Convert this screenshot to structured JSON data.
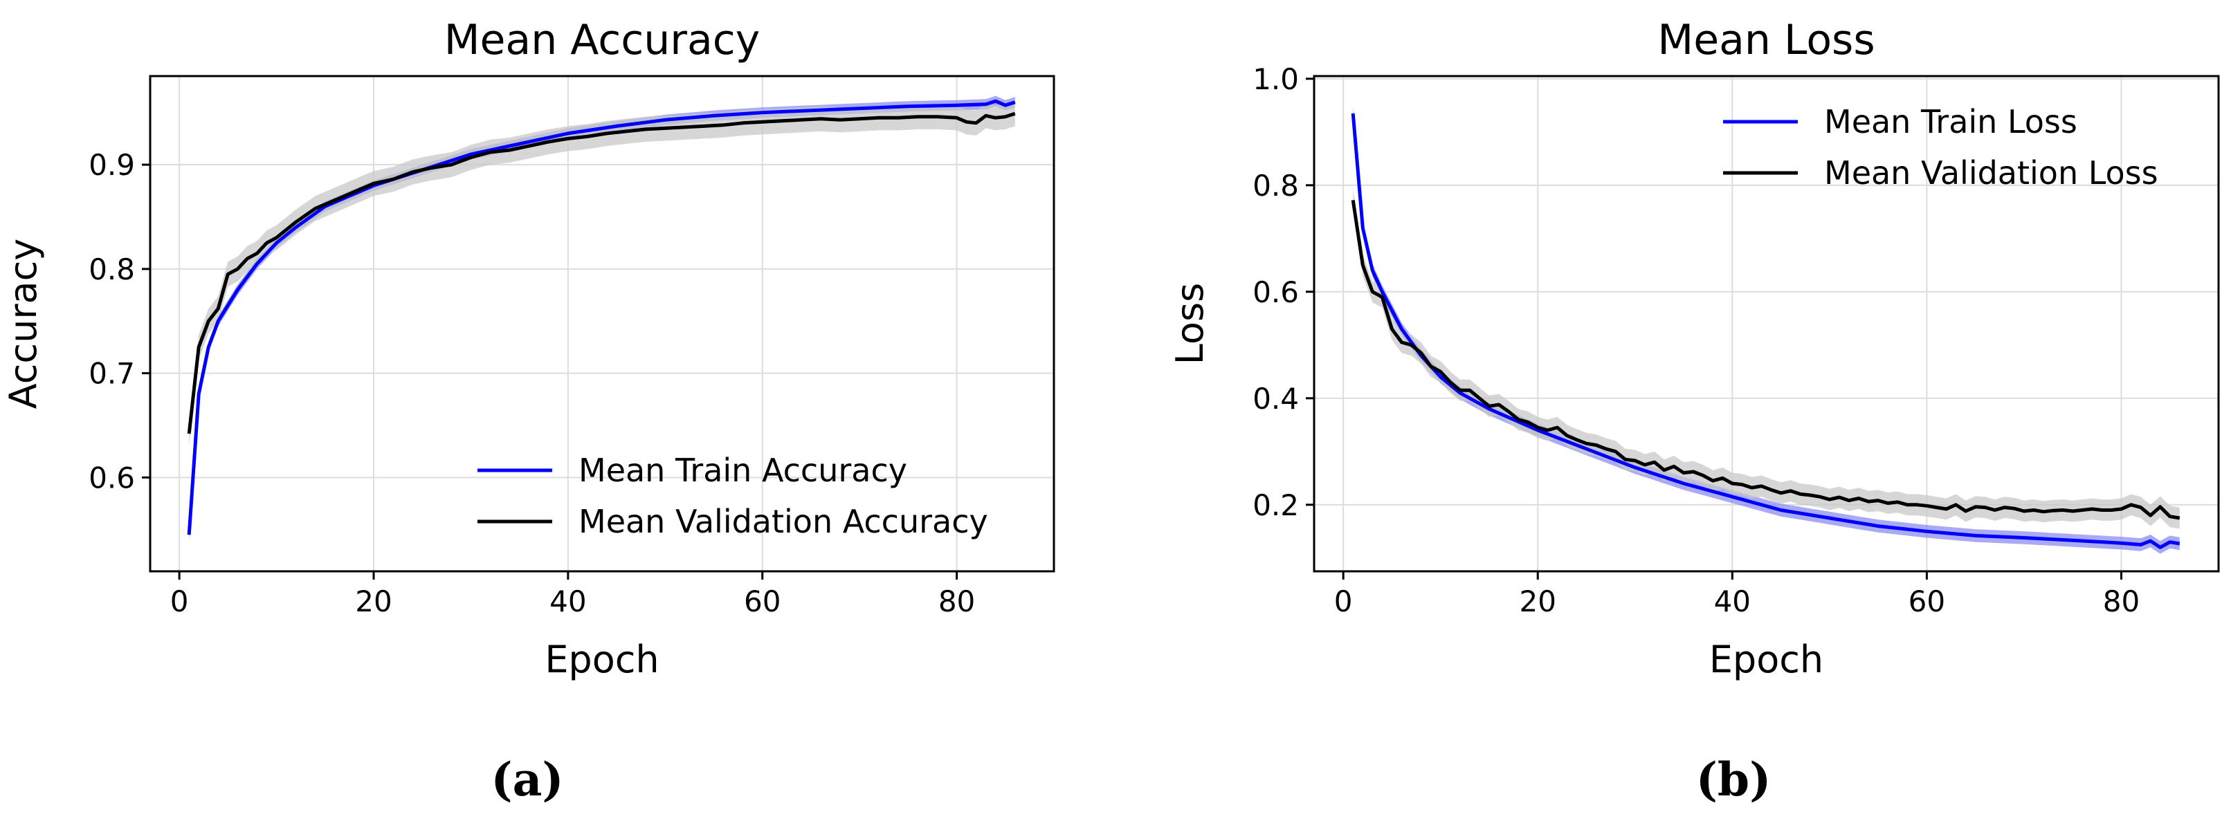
{
  "chart_data": [
    {
      "type": "line",
      "panel_label": "(a)",
      "title": "Mean Accuracy",
      "xlabel": "Epoch",
      "ylabel": "Accuracy",
      "xlim": [
        -3,
        90
      ],
      "ylim": [
        0.51,
        0.985
      ],
      "xticks": [
        0,
        20,
        40,
        60,
        80
      ],
      "yticks": [
        0.6,
        0.7,
        0.8,
        0.9
      ],
      "xtick_labels": [
        "0",
        "20",
        "40",
        "60",
        "80"
      ],
      "ytick_labels": [
        "0.6",
        "0.7",
        "0.8",
        "0.9"
      ],
      "grid": true,
      "legend_position": "lower-right",
      "x_range": [
        1,
        86
      ],
      "series": [
        {
          "name": "Mean Train Accuracy",
          "color": "#0000ff",
          "band_color": "#8c8cf0",
          "band_halfwidth": 0.005,
          "points": [
            [
              1,
              0.545
            ],
            [
              2,
              0.68
            ],
            [
              3,
              0.725
            ],
            [
              4,
              0.75
            ],
            [
              6,
              0.78
            ],
            [
              8,
              0.805
            ],
            [
              10,
              0.825
            ],
            [
              12,
              0.84
            ],
            [
              15,
              0.86
            ],
            [
              20,
              0.88
            ],
            [
              25,
              0.895
            ],
            [
              30,
              0.91
            ],
            [
              35,
              0.92
            ],
            [
              40,
              0.93
            ],
            [
              45,
              0.937
            ],
            [
              50,
              0.943
            ],
            [
              55,
              0.947
            ],
            [
              60,
              0.95
            ],
            [
              65,
              0.952
            ],
            [
              70,
              0.954
            ],
            [
              75,
              0.956
            ],
            [
              80,
              0.957
            ],
            [
              83,
              0.958
            ],
            [
              84,
              0.961
            ],
            [
              85,
              0.957
            ],
            [
              86,
              0.96
            ]
          ]
        },
        {
          "name": "Mean Validation Accuracy",
          "color": "#000000",
          "band_color": "#c8c8c8",
          "band_halfwidth": 0.012,
          "points": [
            [
              1,
              0.642
            ],
            [
              2,
              0.725
            ],
            [
              3,
              0.75
            ],
            [
              4,
              0.762
            ],
            [
              5,
              0.795
            ],
            [
              6,
              0.8
            ],
            [
              7,
              0.81
            ],
            [
              8,
              0.815
            ],
            [
              9,
              0.825
            ],
            [
              10,
              0.83
            ],
            [
              12,
              0.845
            ],
            [
              14,
              0.858
            ],
            [
              16,
              0.866
            ],
            [
              18,
              0.874
            ],
            [
              20,
              0.882
            ],
            [
              22,
              0.886
            ],
            [
              24,
              0.893
            ],
            [
              26,
              0.897
            ],
            [
              28,
              0.9
            ],
            [
              30,
              0.907
            ],
            [
              32,
              0.912
            ],
            [
              34,
              0.914
            ],
            [
              36,
              0.918
            ],
            [
              38,
              0.922
            ],
            [
              40,
              0.925
            ],
            [
              42,
              0.927
            ],
            [
              44,
              0.93
            ],
            [
              46,
              0.932
            ],
            [
              48,
              0.934
            ],
            [
              50,
              0.935
            ],
            [
              52,
              0.936
            ],
            [
              54,
              0.937
            ],
            [
              56,
              0.938
            ],
            [
              58,
              0.94
            ],
            [
              60,
              0.941
            ],
            [
              62,
              0.942
            ],
            [
              64,
              0.943
            ],
            [
              66,
              0.944
            ],
            [
              68,
              0.943
            ],
            [
              70,
              0.944
            ],
            [
              72,
              0.945
            ],
            [
              74,
              0.945
            ],
            [
              76,
              0.946
            ],
            [
              78,
              0.946
            ],
            [
              80,
              0.945
            ],
            [
              81,
              0.941
            ],
            [
              82,
              0.94
            ],
            [
              83,
              0.947
            ],
            [
              84,
              0.945
            ],
            [
              85,
              0.946
            ],
            [
              86,
              0.949
            ]
          ]
        }
      ]
    },
    {
      "type": "line",
      "panel_label": "(b)",
      "title": "Mean Loss",
      "xlabel": "Epoch",
      "ylabel": "Loss",
      "xlim": [
        -3,
        90
      ],
      "ylim": [
        0.075,
        1.005
      ],
      "xticks": [
        0,
        20,
        40,
        60,
        80
      ],
      "yticks": [
        0.2,
        0.4,
        0.6,
        0.8,
        1.0
      ],
      "xtick_labels": [
        "0",
        "20",
        "40",
        "60",
        "80"
      ],
      "ytick_labels": [
        "0.2",
        "0.4",
        "0.6",
        "0.8",
        "1.0"
      ],
      "grid": true,
      "legend_position": "top-right",
      "x_range": [
        1,
        86
      ],
      "series": [
        {
          "name": "Mean Train Loss",
          "color": "#0000ff",
          "band_color": "#8c8cf0",
          "band_halfwidth": 0.012,
          "points": [
            [
              1,
              0.935
            ],
            [
              2,
              0.72
            ],
            [
              3,
              0.64
            ],
            [
              4,
              0.6
            ],
            [
              6,
              0.53
            ],
            [
              8,
              0.48
            ],
            [
              10,
              0.44
            ],
            [
              12,
              0.41
            ],
            [
              15,
              0.38
            ],
            [
              20,
              0.34
            ],
            [
              25,
              0.305
            ],
            [
              30,
              0.27
            ],
            [
              35,
              0.24
            ],
            [
              40,
              0.215
            ],
            [
              45,
              0.19
            ],
            [
              50,
              0.175
            ],
            [
              55,
              0.16
            ],
            [
              60,
              0.15
            ],
            [
              65,
              0.142
            ],
            [
              70,
              0.138
            ],
            [
              75,
              0.133
            ],
            [
              80,
              0.128
            ],
            [
              82,
              0.125
            ],
            [
              83,
              0.132
            ],
            [
              84,
              0.12
            ],
            [
              85,
              0.13
            ],
            [
              86,
              0.127
            ]
          ]
        },
        {
          "name": "Mean Validation Loss",
          "color": "#000000",
          "band_color": "#c8c8c8",
          "band_halfwidth": 0.02,
          "points": [
            [
              1,
              0.772
            ],
            [
              2,
              0.65
            ],
            [
              3,
              0.6
            ],
            [
              4,
              0.59
            ],
            [
              5,
              0.53
            ],
            [
              6,
              0.505
            ],
            [
              7,
              0.5
            ],
            [
              8,
              0.485
            ],
            [
              9,
              0.46
            ],
            [
              10,
              0.45
            ],
            [
              11,
              0.43
            ],
            [
              12,
              0.415
            ],
            [
              13,
              0.415
            ],
            [
              14,
              0.4
            ],
            [
              15,
              0.385
            ],
            [
              16,
              0.388
            ],
            [
              17,
              0.375
            ],
            [
              18,
              0.36
            ],
            [
              19,
              0.355
            ],
            [
              20,
              0.345
            ],
            [
              21,
              0.34
            ],
            [
              22,
              0.345
            ],
            [
              23,
              0.33
            ],
            [
              24,
              0.322
            ],
            [
              25,
              0.315
            ],
            [
              26,
              0.312
            ],
            [
              27,
              0.305
            ],
            [
              28,
              0.3
            ],
            [
              29,
              0.285
            ],
            [
              30,
              0.283
            ],
            [
              31,
              0.275
            ],
            [
              32,
              0.28
            ],
            [
              33,
              0.265
            ],
            [
              34,
              0.272
            ],
            [
              35,
              0.26
            ],
            [
              36,
              0.262
            ],
            [
              37,
              0.255
            ],
            [
              38,
              0.245
            ],
            [
              39,
              0.25
            ],
            [
              40,
              0.24
            ],
            [
              41,
              0.238
            ],
            [
              42,
              0.232
            ],
            [
              43,
              0.235
            ],
            [
              44,
              0.228
            ],
            [
              45,
              0.222
            ],
            [
              46,
              0.226
            ],
            [
              47,
              0.22
            ],
            [
              48,
              0.218
            ],
            [
              49,
              0.215
            ],
            [
              50,
              0.21
            ],
            [
              51,
              0.214
            ],
            [
              52,
              0.208
            ],
            [
              53,
              0.212
            ],
            [
              54,
              0.206
            ],
            [
              55,
              0.208
            ],
            [
              56,
              0.203
            ],
            [
              57,
              0.205
            ],
            [
              58,
              0.2
            ],
            [
              59,
              0.2
            ],
            [
              60,
              0.198
            ],
            [
              61,
              0.195
            ],
            [
              62,
              0.192
            ],
            [
              63,
              0.2
            ],
            [
              64,
              0.188
            ],
            [
              65,
              0.196
            ],
            [
              66,
              0.195
            ],
            [
              67,
              0.19
            ],
            [
              68,
              0.195
            ],
            [
              69,
              0.193
            ],
            [
              70,
              0.188
            ],
            [
              71,
              0.19
            ],
            [
              72,
              0.187
            ],
            [
              73,
              0.189
            ],
            [
              74,
              0.19
            ],
            [
              75,
              0.188
            ],
            [
              76,
              0.19
            ],
            [
              77,
              0.192
            ],
            [
              78,
              0.19
            ],
            [
              79,
              0.19
            ],
            [
              80,
              0.192
            ],
            [
              81,
              0.2
            ],
            [
              82,
              0.195
            ],
            [
              83,
              0.18
            ],
            [
              84,
              0.196
            ],
            [
              85,
              0.178
            ],
            [
              86,
              0.175
            ]
          ]
        }
      ]
    }
  ]
}
